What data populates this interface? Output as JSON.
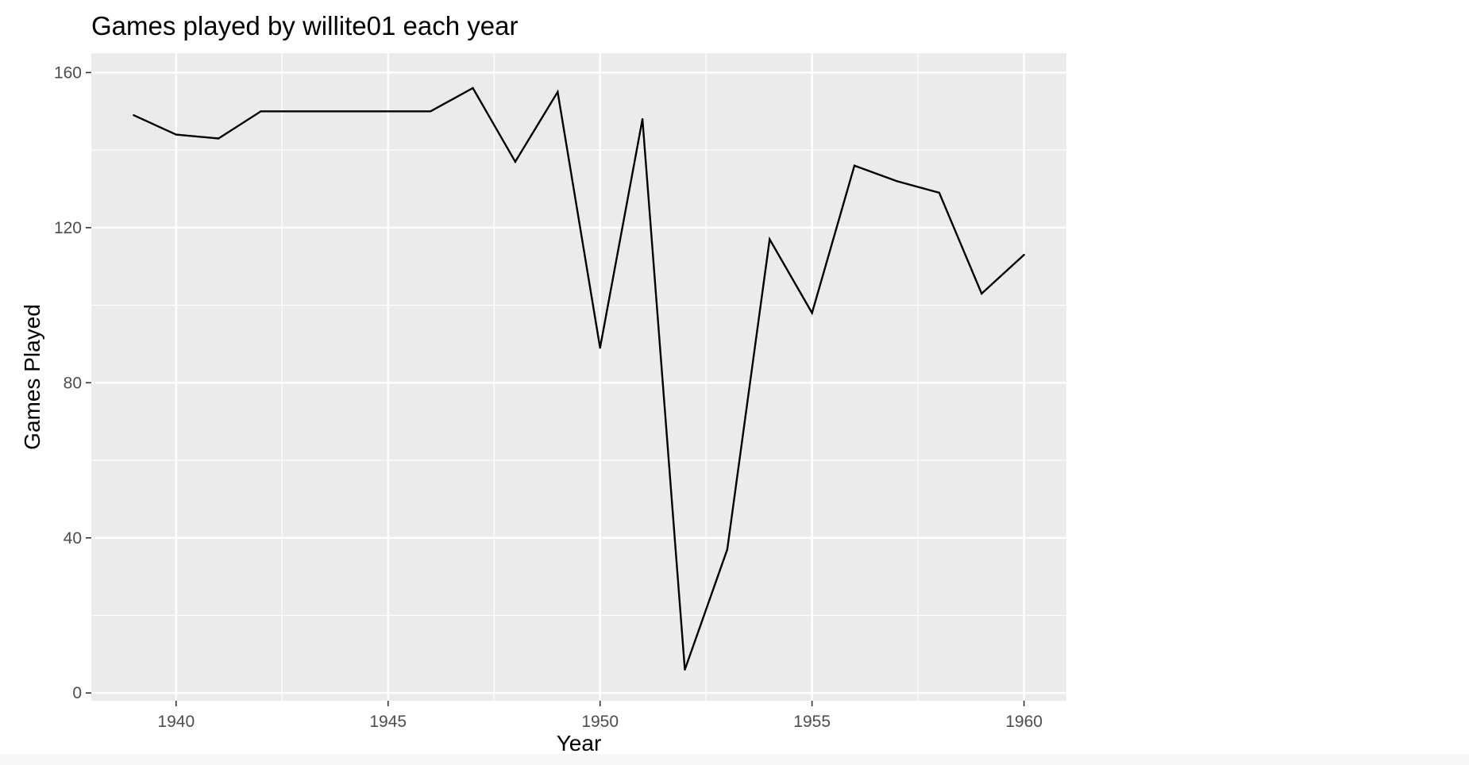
{
  "chart_data": {
    "type": "line",
    "title": "Games played by willite01 each year",
    "xlabel": "Year",
    "ylabel": "Games Played",
    "xlim": [
      1938,
      1961
    ],
    "ylim": [
      -2,
      165
    ],
    "x_ticks": [
      1940,
      1945,
      1950,
      1955,
      1960
    ],
    "y_ticks": [
      0,
      40,
      80,
      120,
      160
    ],
    "grid": true,
    "legend": "none",
    "series": [
      {
        "x": [
          1939,
          1940,
          1941,
          1942,
          1946,
          1947,
          1948,
          1949,
          1950,
          1951,
          1952,
          1953,
          1954,
          1955,
          1956,
          1957,
          1958,
          1959,
          1960
        ],
        "y": [
          149,
          144,
          143,
          150,
          150,
          156,
          137,
          155,
          89,
          148,
          6,
          37,
          117,
          98,
          136,
          132,
          129,
          103,
          113
        ]
      }
    ]
  },
  "colors": {
    "panel_background": "#ebebeb",
    "grid_major": "#ffffff",
    "line": "#000000",
    "tick_text": "#4d4d4d",
    "title_text": "#000000"
  }
}
